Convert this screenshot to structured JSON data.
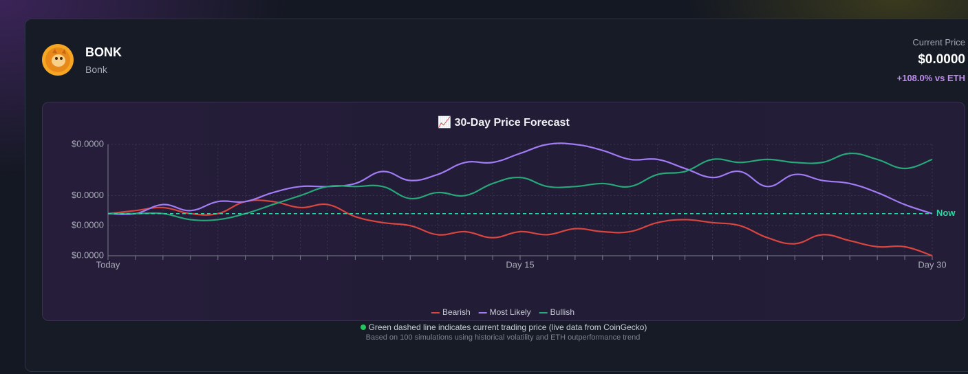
{
  "header": {
    "symbol": "BONK",
    "name": "Bonk",
    "price_label": "Current Price",
    "price": "$0.0000",
    "change": "+108.0% vs ETH"
  },
  "chart_data": {
    "type": "line",
    "title": "📈 30-Day Price Forecast",
    "categories": [
      "Today",
      null,
      null,
      null,
      null,
      null,
      null,
      null,
      null,
      null,
      null,
      null,
      null,
      null,
      null,
      "Day 15",
      null,
      null,
      null,
      null,
      null,
      null,
      null,
      null,
      null,
      null,
      null,
      null,
      null,
      null,
      "Day 30"
    ],
    "series": [
      {
        "name": "Bearish",
        "color": "#d9453f",
        "values": [
          1.94e-05,
          1.95e-05,
          1.96e-05,
          1.94e-05,
          1.94e-05,
          1.98e-05,
          1.98e-05,
          1.96e-05,
          1.97e-05,
          1.93e-05,
          1.91e-05,
          1.9e-05,
          1.87e-05,
          1.88e-05,
          1.86e-05,
          1.88e-05,
          1.87e-05,
          1.89e-05,
          1.88e-05,
          1.88e-05,
          1.91e-05,
          1.92e-05,
          1.91e-05,
          1.9e-05,
          1.86e-05,
          1.84e-05,
          1.87e-05,
          1.85e-05,
          1.83e-05,
          1.83e-05,
          1.8e-05
        ]
      },
      {
        "name": "Most Likely",
        "color": "#a17cf5",
        "values": [
          1.94e-05,
          1.94e-05,
          1.97e-05,
          1.95e-05,
          1.98e-05,
          1.98e-05,
          2.01e-05,
          2.03e-05,
          2.03e-05,
          2.04e-05,
          2.08e-05,
          2.05e-05,
          2.07e-05,
          2.11e-05,
          2.11e-05,
          2.14e-05,
          2.17e-05,
          2.17e-05,
          2.15e-05,
          2.12e-05,
          2.12e-05,
          2.09e-05,
          2.06e-05,
          2.08e-05,
          2.03e-05,
          2.07e-05,
          2.05e-05,
          2.04e-05,
          2.01e-05,
          1.97e-05,
          1.94e-05
        ]
      },
      {
        "name": "Bullish",
        "color": "#27a87a",
        "values": [
          1.94e-05,
          1.94e-05,
          1.94e-05,
          1.92e-05,
          1.92e-05,
          1.94e-05,
          1.97e-05,
          2e-05,
          2.03e-05,
          2.03e-05,
          2.03e-05,
          1.99e-05,
          2.01e-05,
          2e-05,
          2.04e-05,
          2.06e-05,
          2.03e-05,
          2.03e-05,
          2.04e-05,
          2.03e-05,
          2.07e-05,
          2.08e-05,
          2.12e-05,
          2.11e-05,
          2.12e-05,
          2.11e-05,
          2.11e-05,
          2.14e-05,
          2.12e-05,
          2.09e-05,
          2.12e-05
        ]
      }
    ],
    "ylim": [
      1.8e-05,
      2.17e-05
    ],
    "yticks": [
      {
        "value": 1.8e-05,
        "label": "$0.0000"
      },
      {
        "value": 1.9e-05,
        "label": "$0.0000"
      },
      {
        "value": 2e-05,
        "label": "$0.0000"
      },
      {
        "value": 2.17e-05,
        "label": "$0.0000"
      }
    ],
    "grid": true,
    "current_price": {
      "value": 1.94e-05,
      "label": "Now",
      "color": "#2dd4a0"
    },
    "legend": "bottom"
  },
  "footer": {
    "note": "Green dashed line indicates current trading price (live data from CoinGecko)",
    "method": "Based on 100 simulations using historical volatility and ETH outperformance trend"
  }
}
